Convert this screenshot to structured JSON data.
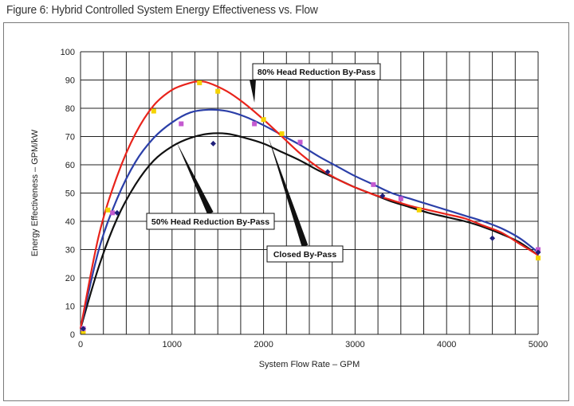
{
  "figure_title": "Figure 6: Hybrid Controlled System Energy Effectiveness vs. Flow",
  "chart_data": {
    "type": "line",
    "xlabel": "System Flow Rate – GPM",
    "ylabel": "Energy Effectiveness – GPM/kW",
    "xlim": [
      0,
      5000
    ],
    "ylim": [
      0,
      100
    ],
    "x_ticks": [
      "0",
      "1000",
      "2000",
      "3000",
      "4000",
      "5000"
    ],
    "y_ticks": [
      "0",
      "10",
      "20",
      "30",
      "40",
      "50",
      "60",
      "70",
      "80",
      "90",
      "100"
    ],
    "grid": true,
    "series": [
      {
        "name": "80% Head Reduction By-Pass",
        "color": "#e8231b",
        "curve": [
          [
            0,
            2
          ],
          [
            200,
            35
          ],
          [
            400,
            56
          ],
          [
            600,
            71
          ],
          [
            800,
            81
          ],
          [
            1000,
            86.5
          ],
          [
            1200,
            89
          ],
          [
            1300,
            89.5
          ],
          [
            1400,
            89
          ],
          [
            1600,
            86
          ],
          [
            1800,
            81.5
          ],
          [
            2000,
            76
          ],
          [
            2200,
            70
          ],
          [
            2400,
            64
          ],
          [
            2600,
            59
          ],
          [
            2800,
            55
          ],
          [
            3000,
            52
          ],
          [
            3200,
            49.5
          ],
          [
            3400,
            47.5
          ],
          [
            3600,
            45.5
          ],
          [
            3800,
            44
          ],
          [
            4000,
            42.5
          ],
          [
            4200,
            41
          ],
          [
            4400,
            38.5
          ],
          [
            4600,
            36
          ],
          [
            4800,
            32
          ],
          [
            5000,
            28
          ]
        ],
        "points_color": "#f5d300",
        "points": [
          [
            30,
            1
          ],
          [
            300,
            44
          ],
          [
            800,
            79
          ],
          [
            1300,
            89
          ],
          [
            1500,
            86
          ],
          [
            2000,
            76
          ],
          [
            2200,
            71
          ],
          [
            3700,
            44
          ],
          [
            5000,
            27
          ]
        ]
      },
      {
        "name": "50% Head Reduction By-Pass",
        "color": "#2b3fa8",
        "curve": [
          [
            0,
            2
          ],
          [
            200,
            30
          ],
          [
            400,
            48
          ],
          [
            600,
            61
          ],
          [
            800,
            69.5
          ],
          [
            1000,
            75
          ],
          [
            1200,
            78.5
          ],
          [
            1400,
            79.5
          ],
          [
            1600,
            79
          ],
          [
            1800,
            77
          ],
          [
            2000,
            74
          ],
          [
            2200,
            70.5
          ],
          [
            2400,
            67
          ],
          [
            2600,
            63
          ],
          [
            2800,
            59.5
          ],
          [
            3000,
            56
          ],
          [
            3200,
            53
          ],
          [
            3400,
            50
          ],
          [
            3600,
            48
          ],
          [
            3800,
            46
          ],
          [
            4000,
            44
          ],
          [
            4200,
            42
          ],
          [
            4400,
            40
          ],
          [
            4600,
            37.5
          ],
          [
            4800,
            34
          ],
          [
            5000,
            29
          ]
        ],
        "points_color": "#c45ad0",
        "points": [
          [
            30,
            2
          ],
          [
            350,
            43
          ],
          [
            1100,
            74.5
          ],
          [
            1900,
            74.5
          ],
          [
            2400,
            68
          ],
          [
            3200,
            53
          ],
          [
            3500,
            48
          ],
          [
            5000,
            30
          ]
        ]
      },
      {
        "name": "Closed By-Pass",
        "color": "#111111",
        "curve": [
          [
            0,
            2
          ],
          [
            200,
            24
          ],
          [
            400,
            41
          ],
          [
            600,
            53
          ],
          [
            800,
            61.5
          ],
          [
            1000,
            66.5
          ],
          [
            1200,
            69.5
          ],
          [
            1400,
            71
          ],
          [
            1600,
            71
          ],
          [
            1800,
            69.5
          ],
          [
            2000,
            67.5
          ],
          [
            2200,
            64.5
          ],
          [
            2400,
            61.5
          ],
          [
            2600,
            58
          ],
          [
            2800,
            55
          ],
          [
            3000,
            52
          ],
          [
            3200,
            49.5
          ],
          [
            3400,
            47
          ],
          [
            3600,
            45
          ],
          [
            3800,
            43
          ],
          [
            4000,
            41.5
          ],
          [
            4200,
            40
          ],
          [
            4400,
            38
          ],
          [
            4600,
            35.5
          ],
          [
            4800,
            32.5
          ],
          [
            5000,
            28
          ]
        ],
        "points_color": "#1f1f7a",
        "points": [
          [
            30,
            2
          ],
          [
            400,
            43
          ],
          [
            1450,
            67.5
          ],
          [
            2700,
            57.5
          ],
          [
            3300,
            49
          ],
          [
            4500,
            34
          ],
          [
            5000,
            29
          ]
        ]
      }
    ],
    "annotations": [
      {
        "text": "80% Head Reduction By-Pass",
        "series": 0
      },
      {
        "text": "50% Head Reduction By-Pass",
        "series": 1
      },
      {
        "text": "Closed By-Pass",
        "series": 2
      }
    ]
  }
}
